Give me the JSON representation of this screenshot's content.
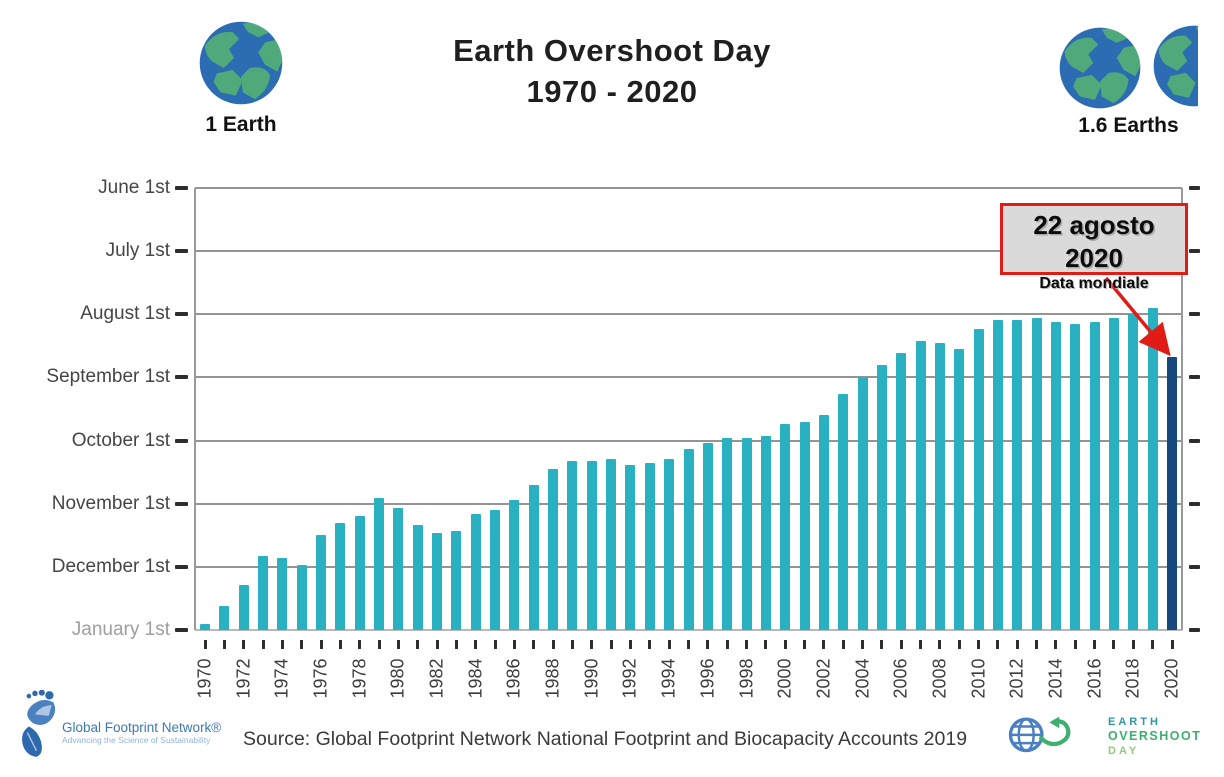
{
  "header": {
    "title": "Earth Overshoot Day",
    "subtitle": "1970 - 2020",
    "left_badge": {
      "label": "1 Earth"
    },
    "right_badge": {
      "label": "1.6 Earths"
    }
  },
  "annotation": {
    "line1": "22 agosto 2020",
    "line2": "Data mondiale"
  },
  "footer": {
    "source": "Source: Global Footprint Network National Footprint and Biocapacity Accounts 2019",
    "gfn_logo": {
      "name": "Global Footprint Network®",
      "tagline": "Advancing the Science of Sustainability"
    },
    "eod_logo": {
      "line1": "EARTH",
      "line2": "OVERSHOOT",
      "line3": "DAY"
    }
  },
  "chart_data": {
    "type": "bar",
    "title": "Earth Overshoot Day",
    "subtitle": "1970 - 2020",
    "orientation": "vertical",
    "grid": true,
    "y_axis_labels": [
      "June 1st",
      "July 1st",
      "August 1st",
      "September 1st",
      "October 1st",
      "November 1st",
      "December 1st",
      "January 1st"
    ],
    "y_axis_note": "date of overshoot day; bars rise from year-end (January 1st) up to the overshoot date",
    "x_range": [
      1970,
      2020
    ],
    "x_tick_labels": [
      "1970",
      "1972",
      "1974",
      "1976",
      "1978",
      "1980",
      "1982",
      "1984",
      "1986",
      "1988",
      "1990",
      "1992",
      "1994",
      "1996",
      "1998",
      "2000",
      "2002",
      "2004",
      "2006",
      "2008",
      "2010",
      "2012",
      "2014",
      "2016",
      "2018",
      "2020"
    ],
    "bar_color": "#29b1c2",
    "highlight_color": "#17497f",
    "highlight_year": 2020,
    "points": [
      {
        "year": 1970,
        "month": 12,
        "day": 29
      },
      {
        "year": 1971,
        "month": 12,
        "day": 20
      },
      {
        "year": 1972,
        "month": 12,
        "day": 10
      },
      {
        "year": 1973,
        "month": 11,
        "day": 26
      },
      {
        "year": 1974,
        "month": 11,
        "day": 27
      },
      {
        "year": 1975,
        "month": 11,
        "day": 30
      },
      {
        "year": 1976,
        "month": 11,
        "day": 16
      },
      {
        "year": 1977,
        "month": 11,
        "day": 10
      },
      {
        "year": 1978,
        "month": 11,
        "day": 7
      },
      {
        "year": 1979,
        "month": 10,
        "day": 29
      },
      {
        "year": 1980,
        "month": 11,
        "day": 3
      },
      {
        "year": 1981,
        "month": 11,
        "day": 11
      },
      {
        "year": 1982,
        "month": 11,
        "day": 15
      },
      {
        "year": 1983,
        "month": 11,
        "day": 14
      },
      {
        "year": 1984,
        "month": 11,
        "day": 6
      },
      {
        "year": 1985,
        "month": 11,
        "day": 4
      },
      {
        "year": 1986,
        "month": 10,
        "day": 30
      },
      {
        "year": 1987,
        "month": 10,
        "day": 23
      },
      {
        "year": 1988,
        "month": 10,
        "day": 15
      },
      {
        "year": 1989,
        "month": 10,
        "day": 11
      },
      {
        "year": 1990,
        "month": 10,
        "day": 11
      },
      {
        "year": 1991,
        "month": 10,
        "day": 10
      },
      {
        "year": 1992,
        "month": 10,
        "day": 13
      },
      {
        "year": 1993,
        "month": 10,
        "day": 12
      },
      {
        "year": 1994,
        "month": 10,
        "day": 10
      },
      {
        "year": 1995,
        "month": 10,
        "day": 5
      },
      {
        "year": 1996,
        "month": 10,
        "day": 2
      },
      {
        "year": 1997,
        "month": 9,
        "day": 30
      },
      {
        "year": 1998,
        "month": 9,
        "day": 30
      },
      {
        "year": 1999,
        "month": 9,
        "day": 29
      },
      {
        "year": 2000,
        "month": 9,
        "day": 23
      },
      {
        "year": 2001,
        "month": 9,
        "day": 22
      },
      {
        "year": 2002,
        "month": 9,
        "day": 19
      },
      {
        "year": 2003,
        "month": 9,
        "day": 9
      },
      {
        "year": 2004,
        "month": 9,
        "day": 1
      },
      {
        "year": 2005,
        "month": 8,
        "day": 26
      },
      {
        "year": 2006,
        "month": 8,
        "day": 20
      },
      {
        "year": 2007,
        "month": 8,
        "day": 14
      },
      {
        "year": 2008,
        "month": 8,
        "day": 15
      },
      {
        "year": 2009,
        "month": 8,
        "day": 18
      },
      {
        "year": 2010,
        "month": 8,
        "day": 8
      },
      {
        "year": 2011,
        "month": 8,
        "day": 4
      },
      {
        "year": 2012,
        "month": 8,
        "day": 4
      },
      {
        "year": 2013,
        "month": 8,
        "day": 3
      },
      {
        "year": 2014,
        "month": 8,
        "day": 5
      },
      {
        "year": 2015,
        "month": 8,
        "day": 6
      },
      {
        "year": 2016,
        "month": 8,
        "day": 5
      },
      {
        "year": 2017,
        "month": 8,
        "day": 3
      },
      {
        "year": 2018,
        "month": 8,
        "day": 1
      },
      {
        "year": 2019,
        "month": 7,
        "day": 29
      },
      {
        "year": 2020,
        "month": 8,
        "day": 22
      }
    ]
  }
}
